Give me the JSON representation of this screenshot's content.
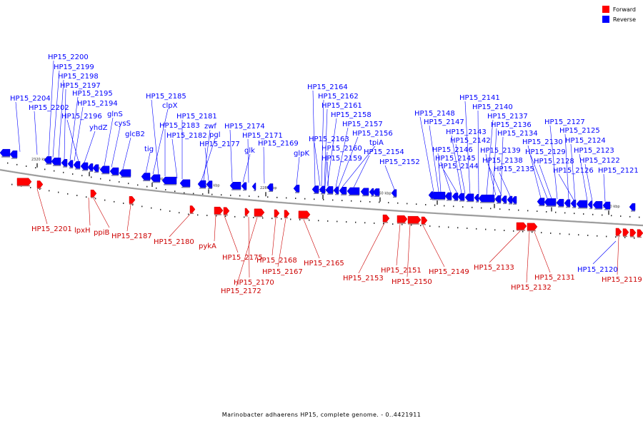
{
  "legend": {
    "forward_label": "Forward",
    "reverse_label": "Reverse",
    "forward_color": "#ff0000",
    "reverse_color": "#0000ff"
  },
  "caption": "Marinobacter adhaerens HP15, complete genome. - 0..4421911",
  "ticks": [
    "2320 kbp",
    "2310 kbp",
    "2300 kbp",
    "2290 kbp",
    "2280 kbp",
    "2270 kbp",
    "2260 kbp",
    "2250 kbp",
    "2240 kbp",
    "2230 kbp",
    "2220 kbp"
  ],
  "reverse_genes": [
    "HP15_2204",
    "HP15_2202",
    "HP15_2200",
    "HP15_2199",
    "HP15_2198",
    "HP15_2197",
    "HP15_2195",
    "HP15_2194",
    "HP15_2196",
    "yhdZ",
    "glnS",
    "cysS",
    "glcB2",
    "tig",
    "HP15_2185",
    "clpX",
    "HP15_2183",
    "HP15_2182",
    "HP15_2181",
    "zwf",
    "pgl",
    "HP15_2177",
    "HP15_2174",
    "glk",
    "HP15_2171",
    "HP15_2169",
    "glpK",
    "HP15_2164",
    "HP15_2162",
    "HP15_2161",
    "HP15_2158",
    "HP15_2163",
    "HP15_2160",
    "HP15_2159",
    "HP15_2157",
    "HP15_2156",
    "tpiA",
    "HP15_2154",
    "HP15_2152",
    "HP15_2148",
    "HP15_2147",
    "HP15_2146",
    "HP15_2145",
    "HP15_2144",
    "HP15_2143",
    "HP15_2142",
    "HP15_2141",
    "HP15_2140",
    "HP15_2137",
    "HP15_2136",
    "HP15_2134",
    "HP15_2139",
    "HP15_2138",
    "HP15_2135",
    "HP15_2130",
    "HP15_2129",
    "HP15_2128",
    "HP15_2127",
    "HP15_2125",
    "HP15_2124",
    "HP15_2126",
    "HP15_2123",
    "HP15_2122",
    "HP15_2121",
    "HP15_2120"
  ],
  "forward_genes": [
    "HP15_2201",
    "lpxH",
    "ppiB",
    "HP15_2187",
    "HP15_2180",
    "pykA",
    "HP15_2175",
    "HP15_2170",
    "HP15_2172",
    "HP15_2168",
    "HP15_2167",
    "HP15_2165",
    "HP15_2153",
    "HP15_2151",
    "HP15_2150",
    "HP15_2149",
    "HP15_2133",
    "HP15_2132",
    "HP15_2131",
    "HP15_2119"
  ]
}
